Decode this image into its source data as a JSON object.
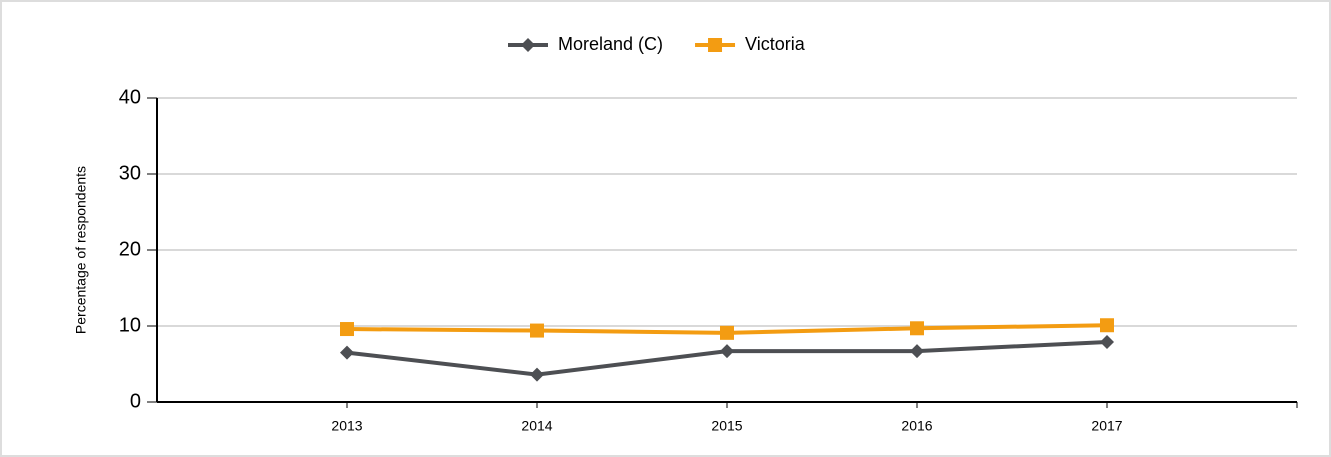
{
  "chart_data": {
    "type": "line",
    "y_label": "Percentage of respondents",
    "categories": [
      "2013",
      "2014",
      "2015",
      "2016",
      "2017"
    ],
    "series": [
      {
        "name": "Moreland (C)",
        "color": "#4d4f53",
        "marker": "diamond",
        "values": [
          6.5,
          3.6,
          6.7,
          6.7,
          7.9
        ]
      },
      {
        "name": "Victoria",
        "color": "#f39c12",
        "marker": "square",
        "values": [
          9.6,
          9.4,
          9.1,
          9.7,
          10.1
        ]
      }
    ],
    "ylim": [
      0,
      40
    ],
    "yticks": [
      0,
      10,
      20,
      30,
      40
    ],
    "grid": true,
    "legend": "top"
  }
}
